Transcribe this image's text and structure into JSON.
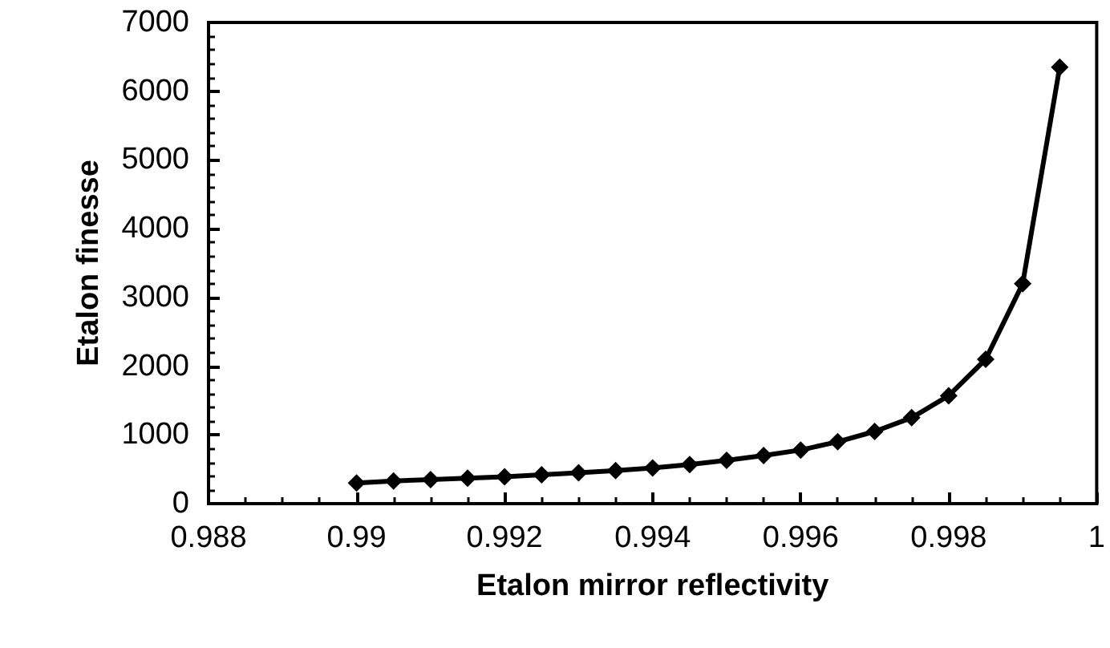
{
  "chart_data": {
    "type": "line",
    "xlabel": "Etalon mirror reflectivity",
    "ylabel": "Etalon finesse",
    "x": [
      0.99,
      0.9905,
      0.991,
      0.9915,
      0.992,
      0.9925,
      0.993,
      0.9935,
      0.994,
      0.9945,
      0.995,
      0.9955,
      0.996,
      0.9965,
      0.997,
      0.9975,
      0.998,
      0.9985,
      0.999,
      0.9995
    ],
    "values": [
      300,
      330,
      350,
      370,
      390,
      420,
      450,
      480,
      520,
      570,
      630,
      700,
      780,
      900,
      1050,
      1250,
      1570,
      2100,
      3200,
      6350
    ],
    "color": "#000000",
    "marker": "diamond",
    "line_style": "solid",
    "xlim": [
      0.988,
      1
    ],
    "xticks": [
      0.988,
      0.99,
      0.992,
      0.994,
      0.996,
      0.998,
      1
    ],
    "ylim": [
      0,
      7000
    ],
    "yticks": [
      0,
      1000,
      2000,
      3000,
      4000,
      5000,
      6000,
      7000
    ]
  }
}
